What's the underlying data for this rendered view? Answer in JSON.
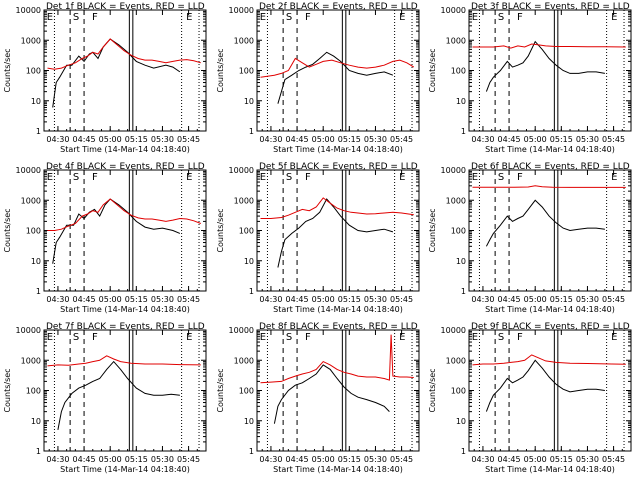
{
  "common": {
    "xlabel": "Start Time (14-Mar-14 04:18:40)",
    "ylabel": "Counts/sec",
    "x_ticks": [
      "04:30",
      "04:45",
      "05:00",
      "05:15",
      "05:30",
      "05:45"
    ],
    "y_ticks": [
      "1",
      "10",
      "100",
      "1000",
      "10000"
    ],
    "scale": "log",
    "region_labels": [
      "E",
      "S",
      "F",
      "E"
    ],
    "colors": {
      "events": "#000000",
      "lld": "#e00000"
    }
  },
  "chart_data": [
    {
      "type": "line",
      "title": "Det 1f BLACK = Events, RED = LLD",
      "xlabel": "Start Time (14-Mar-14 04:18:40)",
      "ylabel": "Counts/sec",
      "y_scale": "log",
      "ylim": [
        1,
        10000
      ],
      "series": [
        {
          "color": "#000000",
          "x": [
            "04:27",
            "04:29",
            "04:31",
            "04:35",
            "04:38",
            "04:42",
            "04:45",
            "04:48",
            "04:50",
            "04:53",
            "04:56",
            "05:00",
            "05:05",
            "05:10",
            "05:15",
            "05:20",
            "05:25",
            "05:32",
            "05:36",
            "05:40"
          ],
          "values": [
            6,
            40,
            60,
            150,
            150,
            300,
            200,
            350,
            400,
            250,
            600,
            1100,
            700,
            400,
            200,
            150,
            120,
            150,
            130,
            90
          ]
        },
        {
          "color": "#e00000",
          "x": [
            "04:24",
            "04:28",
            "04:32",
            "04:36",
            "04:40",
            "04:44",
            "04:47",
            "04:50",
            "04:53",
            "04:56",
            "05:00",
            "05:04",
            "05:08",
            "05:12",
            "05:16",
            "05:20",
            "05:24",
            "05:28",
            "05:32",
            "05:36",
            "05:40",
            "05:44",
            "05:48",
            "05:52"
          ],
          "values": [
            120,
            110,
            120,
            150,
            180,
            250,
            300,
            400,
            350,
            600,
            1100,
            700,
            450,
            320,
            250,
            220,
            220,
            200,
            180,
            200,
            220,
            230,
            210,
            180
          ]
        }
      ]
    },
    {
      "type": "line",
      "title": "Det 2f BLACK = Events, RED = LLD",
      "xlabel": "Start Time (14-Mar-14 04:18:40)",
      "ylabel": "Counts/sec",
      "y_scale": "log",
      "ylim": [
        1,
        10000
      ],
      "series": [
        {
          "color": "#000000",
          "x": [
            "04:34",
            "04:36",
            "04:38",
            "04:42",
            "04:46",
            "04:50",
            "04:54",
            "04:58",
            "05:02",
            "05:06",
            "05:10",
            "05:15",
            "05:20",
            "05:25",
            "05:30",
            "05:35",
            "05:40"
          ],
          "values": [
            8,
            20,
            50,
            70,
            100,
            130,
            160,
            250,
            400,
            300,
            200,
            100,
            80,
            70,
            80,
            90,
            70
          ]
        },
        {
          "color": "#e00000",
          "x": [
            "04:24",
            "04:28",
            "04:32",
            "04:36",
            "04:40",
            "04:44",
            "04:48",
            "04:52",
            "04:56",
            "05:00",
            "05:05",
            "05:10",
            "05:15",
            "05:20",
            "05:25",
            "05:30",
            "05:35",
            "05:40",
            "05:44",
            "05:48",
            "05:52"
          ],
          "values": [
            60,
            65,
            70,
            80,
            100,
            250,
            180,
            130,
            160,
            200,
            220,
            180,
            150,
            130,
            120,
            130,
            150,
            200,
            220,
            180,
            130
          ]
        }
      ]
    },
    {
      "type": "line",
      "title": "Det 3f BLACK = Events, RED = LLD",
      "xlabel": "Start Time (14-Mar-14 04:18:40)",
      "ylabel": "Counts/sec",
      "y_scale": "log",
      "ylim": [
        1,
        10000
      ],
      "series": [
        {
          "color": "#000000",
          "x": [
            "04:32",
            "04:34",
            "04:36",
            "04:40",
            "04:44",
            "04:47",
            "04:50",
            "04:53",
            "04:56",
            "05:00",
            "05:04",
            "05:08",
            "05:12",
            "05:16",
            "05:20",
            "05:25",
            "05:30",
            "05:35",
            "05:40"
          ],
          "values": [
            20,
            40,
            60,
            100,
            200,
            130,
            150,
            180,
            300,
            900,
            500,
            250,
            150,
            100,
            80,
            80,
            90,
            90,
            80
          ]
        },
        {
          "color": "#e00000",
          "x": [
            "04:24",
            "04:30",
            "04:36",
            "04:42",
            "04:46",
            "04:50",
            "04:54",
            "04:58",
            "05:02",
            "05:06",
            "05:12",
            "05:20",
            "05:30",
            "05:40",
            "05:52"
          ],
          "values": [
            600,
            600,
            600,
            650,
            550,
            650,
            600,
            750,
            700,
            650,
            620,
            620,
            610,
            610,
            600
          ]
        }
      ]
    },
    {
      "type": "line",
      "title": "Det 4f BLACK = Events, RED = LLD",
      "xlabel": "Start Time (14-Mar-14 04:18:40)",
      "ylabel": "Counts/sec",
      "y_scale": "log",
      "ylim": [
        1,
        10000
      ],
      "series": [
        {
          "color": "#000000",
          "x": [
            "04:27",
            "04:29",
            "04:31",
            "04:35",
            "04:39",
            "04:42",
            "04:45",
            "04:48",
            "04:51",
            "04:54",
            "04:57",
            "05:00",
            "05:05",
            "05:10",
            "05:15",
            "05:20",
            "05:25",
            "05:30",
            "05:36",
            "05:40"
          ],
          "values": [
            8,
            40,
            60,
            150,
            150,
            350,
            250,
            400,
            500,
            300,
            700,
            1100,
            700,
            400,
            200,
            130,
            110,
            120,
            100,
            80
          ]
        },
        {
          "color": "#e00000",
          "x": [
            "04:24",
            "04:28",
            "04:32",
            "04:36",
            "04:40",
            "04:44",
            "04:47",
            "04:50",
            "04:53",
            "04:56",
            "05:00",
            "05:04",
            "05:08",
            "05:12",
            "05:16",
            "05:20",
            "05:24",
            "05:28",
            "05:32",
            "05:36",
            "05:40",
            "05:44",
            "05:48",
            "05:52"
          ],
          "values": [
            100,
            100,
            110,
            140,
            170,
            300,
            350,
            450,
            400,
            700,
            1100,
            700,
            450,
            320,
            260,
            240,
            240,
            220,
            200,
            220,
            250,
            240,
            210,
            170
          ]
        }
      ]
    },
    {
      "type": "line",
      "title": "Det 5f BLACK = Events, RED = LLD",
      "xlabel": "Start Time (14-Mar-14 04:18:40)",
      "ylabel": "Counts/sec",
      "y_scale": "log",
      "ylim": [
        1,
        10000
      ],
      "series": [
        {
          "color": "#000000",
          "x": [
            "04:34",
            "04:36",
            "04:38",
            "04:42",
            "04:46",
            "04:50",
            "04:54",
            "04:58",
            "05:02",
            "05:06",
            "05:10",
            "05:15",
            "05:20",
            "05:25",
            "05:30",
            "05:35",
            "05:40"
          ],
          "values": [
            6,
            20,
            50,
            80,
            120,
            200,
            250,
            400,
            1100,
            600,
            300,
            150,
            100,
            90,
            100,
            110,
            90
          ]
        },
        {
          "color": "#e00000",
          "x": [
            "04:24",
            "04:30",
            "04:36",
            "04:40",
            "04:44",
            "04:48",
            "04:52",
            "04:56",
            "05:00",
            "05:04",
            "05:08",
            "05:12",
            "05:16",
            "05:20",
            "05:25",
            "05:30",
            "05:35",
            "05:40",
            "05:45",
            "05:52"
          ],
          "values": [
            250,
            250,
            270,
            320,
            400,
            500,
            450,
            600,
            1200,
            800,
            550,
            450,
            400,
            380,
            350,
            360,
            380,
            400,
            380,
            330
          ]
        }
      ]
    },
    {
      "type": "line",
      "title": "Det 6f BLACK = Events, RED = LLD",
      "xlabel": "Start Time (14-Mar-14 04:18:40)",
      "ylabel": "Counts/sec",
      "y_scale": "log",
      "ylim": [
        1,
        10000
      ],
      "series": [
        {
          "color": "#000000",
          "x": [
            "04:32",
            "04:34",
            "04:36",
            "04:40",
            "04:44",
            "04:47",
            "04:50",
            "04:53",
            "04:56",
            "05:00",
            "05:04",
            "05:08",
            "05:12",
            "05:16",
            "05:20",
            "05:25",
            "05:30",
            "05:35",
            "05:40"
          ],
          "values": [
            30,
            50,
            80,
            150,
            300,
            200,
            250,
            300,
            500,
            1000,
            600,
            300,
            180,
            120,
            100,
            110,
            120,
            120,
            110
          ]
        },
        {
          "color": "#e00000",
          "x": [
            "04:24",
            "04:36",
            "04:48",
            "04:56",
            "05:00",
            "05:04",
            "05:10",
            "05:20",
            "05:30",
            "05:40",
            "05:52"
          ],
          "values": [
            2700,
            2700,
            2700,
            2750,
            3000,
            2800,
            2700,
            2650,
            2650,
            2650,
            2650
          ]
        }
      ]
    },
    {
      "type": "line",
      "title": "Det 7f BLACK = Events, RED = LLD",
      "xlabel": "Start Time (14-Mar-14 04:18:40)",
      "ylabel": "Counts/sec",
      "y_scale": "log",
      "ylim": [
        1,
        10000
      ],
      "series": [
        {
          "color": "#000000",
          "x": [
            "04:30",
            "04:32",
            "04:34",
            "04:38",
            "04:42",
            "04:46",
            "04:50",
            "04:54",
            "04:58",
            "05:02",
            "05:06",
            "05:10",
            "05:15",
            "05:20",
            "05:25",
            "05:30",
            "05:35",
            "05:40"
          ],
          "values": [
            5,
            20,
            40,
            80,
            120,
            150,
            200,
            250,
            500,
            900,
            500,
            250,
            120,
            80,
            70,
            70,
            75,
            70
          ]
        },
        {
          "color": "#e00000",
          "x": [
            "04:24",
            "04:30",
            "04:36",
            "04:42",
            "04:46",
            "04:50",
            "04:54",
            "04:58",
            "05:02",
            "05:06",
            "05:12",
            "05:20",
            "05:30",
            "05:40",
            "05:52"
          ],
          "values": [
            650,
            700,
            680,
            750,
            800,
            900,
            1000,
            1400,
            1100,
            900,
            800,
            750,
            750,
            720,
            700
          ]
        }
      ]
    },
    {
      "type": "line",
      "title": "Det 8f BLACK = Events, RED = LLD",
      "xlabel": "Start Time (14-Mar-14 04:18:40)",
      "ylabel": "Counts/sec",
      "y_scale": "log",
      "ylim": [
        1,
        10000
      ],
      "series": [
        {
          "color": "#000000",
          "x": [
            "04:32",
            "04:34",
            "04:36",
            "04:40",
            "04:44",
            "04:48",
            "04:52",
            "04:56",
            "05:00",
            "05:04",
            "05:08",
            "05:12",
            "05:16",
            "05:20",
            "05:25",
            "05:30",
            "05:35",
            "05:38"
          ],
          "values": [
            8,
            30,
            50,
            100,
            150,
            180,
            250,
            350,
            700,
            500,
            250,
            130,
            80,
            60,
            50,
            40,
            30,
            20
          ]
        },
        {
          "color": "#e00000",
          "x": [
            "04:24",
            "04:30",
            "04:36",
            "04:40",
            "04:44",
            "04:48",
            "04:52",
            "04:56",
            "05:00",
            "05:04",
            "05:08",
            "05:12",
            "05:16",
            "05:20",
            "05:25",
            "05:30",
            "05:35",
            "05:38",
            "05:39",
            "05:40",
            "05:44",
            "05:48",
            "05:52"
          ],
          "values": [
            180,
            190,
            200,
            250,
            300,
            350,
            400,
            500,
            900,
            700,
            500,
            400,
            350,
            300,
            280,
            280,
            250,
            220,
            7000,
            300,
            280,
            280,
            270
          ]
        }
      ]
    },
    {
      "type": "line",
      "title": "Det 9f BLACK = Events, RED = LLD",
      "xlabel": "Start Time (14-Mar-14 04:18:40)",
      "ylabel": "Counts/sec",
      "y_scale": "log",
      "ylim": [
        1,
        10000
      ],
      "series": [
        {
          "color": "#000000",
          "x": [
            "04:32",
            "04:34",
            "04:36",
            "04:40",
            "04:44",
            "04:47",
            "04:50",
            "04:53",
            "04:56",
            "05:00",
            "05:04",
            "05:08",
            "05:12",
            "05:16",
            "05:20",
            "05:25",
            "05:30",
            "05:35",
            "05:40"
          ],
          "values": [
            20,
            40,
            70,
            120,
            250,
            180,
            220,
            280,
            450,
            1000,
            550,
            280,
            160,
            110,
            90,
            100,
            110,
            110,
            100
          ]
        },
        {
          "color": "#e00000",
          "x": [
            "04:24",
            "04:30",
            "04:36",
            "04:42",
            "04:46",
            "04:50",
            "04:54",
            "04:58",
            "05:02",
            "05:06",
            "05:12",
            "05:20",
            "05:30",
            "05:40",
            "05:52"
          ],
          "values": [
            700,
            750,
            750,
            800,
            850,
            900,
            1000,
            1500,
            1200,
            950,
            850,
            800,
            780,
            760,
            740
          ]
        }
      ]
    }
  ]
}
